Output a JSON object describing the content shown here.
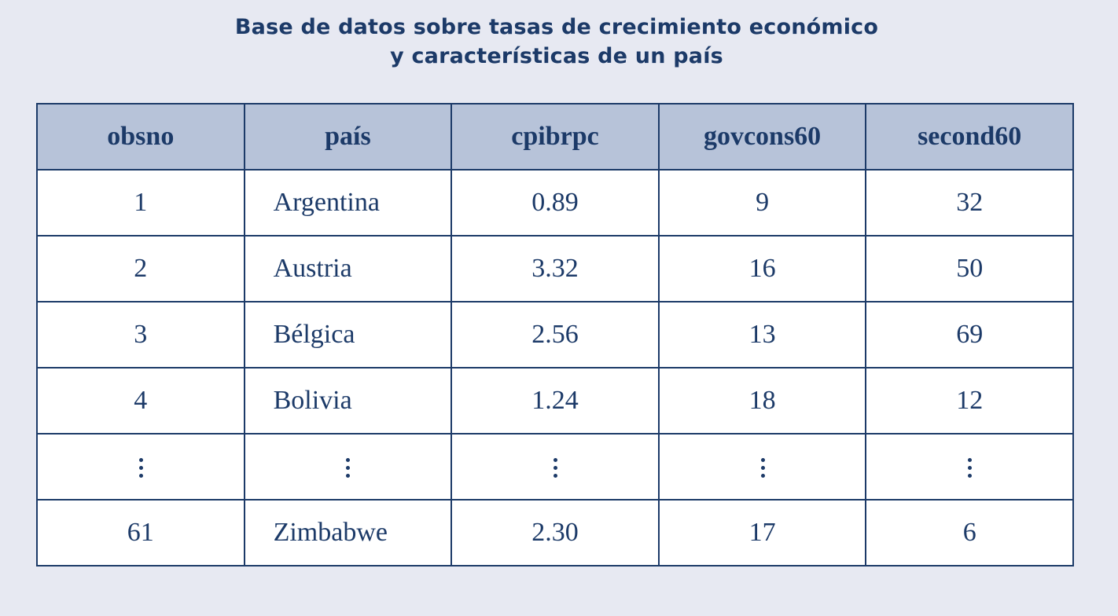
{
  "title": {
    "line1": "Base de datos sobre tasas de crecimiento económico",
    "line2": "y características de un país"
  },
  "table": {
    "headers": [
      "obsno",
      "país",
      "cpibrpc",
      "govcons60",
      "second60"
    ],
    "rows": [
      [
        "1",
        "Argentina",
        "0.89",
        "9",
        "32"
      ],
      [
        "2",
        "Austria",
        "3.32",
        "16",
        "50"
      ],
      [
        "3",
        "Bélgica",
        "2.56",
        "13",
        "69"
      ],
      [
        "4",
        "Bolivia",
        "1.24",
        "18",
        "12"
      ],
      [
        "⋮",
        "⋮",
        "⋮",
        "⋮",
        "⋮"
      ],
      [
        "61",
        "Zimbabwe",
        "2.30",
        "17",
        "6"
      ]
    ]
  },
  "colors": {
    "background": "#e7e9f2",
    "header_fill": "#b7c3d9",
    "text": "#1c3a68"
  }
}
